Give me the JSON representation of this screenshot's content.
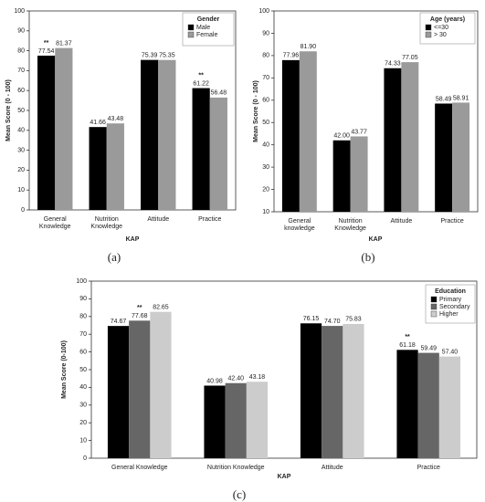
{
  "chart_data": [
    {
      "type": "bar",
      "label": "(a)",
      "xlabel": "KAP",
      "ylabel": "Mean Score (0 - 100)",
      "categories": [
        "General Knowledge",
        "Nutrition Knowledge",
        "Attitude",
        "Practice"
      ],
      "series": [
        {
          "name": "Male",
          "color": "#000000",
          "values": [
            77.54,
            41.66,
            75.39,
            61.22
          ],
          "value_labels": [
            "77.54",
            "41.66",
            "75.39",
            "61.22"
          ]
        },
        {
          "name": "Female",
          "color": "#9a9a9a",
          "values": [
            81.37,
            43.48,
            75.35,
            56.48
          ],
          "value_labels": [
            "81.37",
            "43.48",
            "75.35",
            "56.48"
          ]
        }
      ],
      "legend_title": "Gender",
      "legend": "top-right",
      "ylim": [
        0,
        100
      ],
      "yticks": [
        0,
        10,
        20,
        30,
        40,
        50,
        60,
        70,
        80,
        90,
        100
      ],
      "annotations": [
        {
          "text": "**",
          "category": "General Knowledge",
          "series": "Male"
        },
        {
          "text": "**",
          "category": "Practice",
          "series": "Male"
        }
      ]
    },
    {
      "type": "bar",
      "label": "(b)",
      "xlabel": "KAP",
      "ylabel": "Mean Score (0 - 100)",
      "categories": [
        "General knowledge",
        "Nutrition Knowledge",
        "Attitude",
        "Practice"
      ],
      "series": [
        {
          "name": "<=30",
          "color": "#000000",
          "values": [
            77.96,
            42.0,
            74.33,
            58.49
          ],
          "value_labels": [
            "77.96",
            "42.00",
            "74.33",
            "58.49"
          ]
        },
        {
          "name": "> 30",
          "color": "#9a9a9a",
          "values": [
            81.9,
            43.77,
            77.05,
            58.91
          ],
          "value_labels": [
            "81.90",
            "43.77",
            "77.05",
            "58.91"
          ]
        }
      ],
      "legend_title": "Age (years)",
      "legend": "top-right",
      "ylim": [
        10,
        100
      ],
      "yticks": [
        10,
        20,
        30,
        40,
        50,
        60,
        70,
        80,
        90,
        100
      ],
      "annotations": []
    },
    {
      "type": "bar",
      "label": "(c)",
      "xlabel": "KAP",
      "ylabel": "Mean Score (0-100)",
      "categories": [
        "General Knowledge",
        "Nutrition Knowledge",
        "Attitude",
        "Practice"
      ],
      "series": [
        {
          "name": "Primary",
          "color": "#000000",
          "values": [
            74.67,
            40.98,
            76.15,
            61.18
          ],
          "value_labels": [
            "74.67",
            "40.98",
            "76.15",
            "61.18"
          ]
        },
        {
          "name": "Secondary",
          "color": "#666666",
          "values": [
            77.68,
            42.4,
            74.7,
            59.49
          ],
          "value_labels": [
            "77.68",
            "42.40",
            "74.70",
            "59.49"
          ]
        },
        {
          "name": "Higher",
          "color": "#cccccc",
          "values": [
            82.65,
            43.18,
            75.83,
            57.4
          ],
          "value_labels": [
            "82.65",
            "43.18",
            "75.83",
            "57.40"
          ]
        }
      ],
      "legend_title": "Education",
      "legend": "top-right",
      "ylim": [
        0,
        100
      ],
      "yticks": [
        0,
        10,
        20,
        30,
        40,
        50,
        60,
        70,
        80,
        90,
        100
      ],
      "annotations": [
        {
          "text": "**",
          "category": "General Knowledge",
          "series": "Secondary"
        },
        {
          "text": "**",
          "category": "Practice",
          "series": "Primary"
        }
      ]
    }
  ]
}
